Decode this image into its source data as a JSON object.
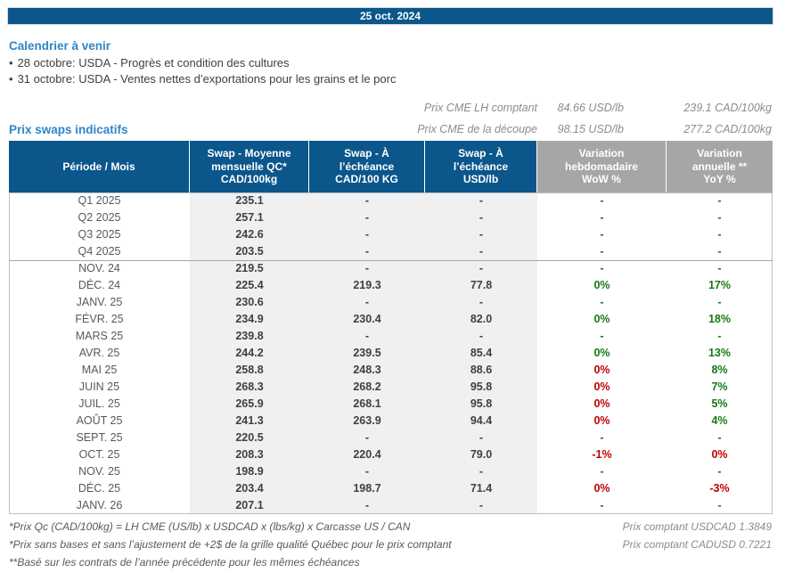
{
  "header_bar": {
    "date": "25 oct. 2024"
  },
  "calendar": {
    "title": "Calendrier à venir",
    "bullet": "•",
    "items": [
      "28 octobre: USDA - Progrès et condition des cultures",
      "31 octobre: USDA - Ventes nettes d’exportations pour les grains et le porc"
    ]
  },
  "cme_prices": [
    {
      "label": "Prix CME LH comptant",
      "usd": "84.66 USD/lb",
      "cad": "239.1 CAD/100kg"
    },
    {
      "label": "Prix CME de la découpe",
      "usd": "98.15 USD/lb",
      "cad": "277.2 CAD/100kg"
    }
  ],
  "swaps": {
    "title": "Prix swaps indicatifs",
    "columns": [
      {
        "label": "Période / Mois"
      },
      {
        "label": "Swap - Moyenne\nmensuelle QC*\nCAD/100kg"
      },
      {
        "label": "Swap - À\nl’échéance\nCAD/100 KG"
      },
      {
        "label": "Swap - À\nl’échéance\nUSD/lb"
      },
      {
        "label": "Variation\nhebdomadaire\nWoW %"
      },
      {
        "label": "Variation\nannuelle **\nYoY %"
      }
    ],
    "rows": [
      {
        "period": "Q1 2025",
        "qc": "235.1",
        "cad": "-",
        "usd": "-",
        "wow": "-",
        "wow_color": "green",
        "yoy": "-",
        "yoy_color": "green"
      },
      {
        "period": "Q2 2025",
        "qc": "257.1",
        "cad": "-",
        "usd": "-",
        "wow": "-",
        "wow_color": "green",
        "yoy": "-",
        "yoy_color": "green"
      },
      {
        "period": "Q3 2025",
        "qc": "242.6",
        "cad": "-",
        "usd": "-",
        "wow": "-",
        "wow_color": "green",
        "yoy": "-",
        "yoy_color": "green"
      },
      {
        "period": "Q4 2025",
        "qc": "203.5",
        "cad": "-",
        "usd": "-",
        "wow": "-",
        "wow_color": "green",
        "yoy": "-",
        "yoy_color": "green"
      },
      {
        "period": "NOV. 24",
        "qc": "219.5",
        "cad": "-",
        "usd": "-",
        "wow": "-",
        "wow_color": "green",
        "yoy": "-",
        "yoy_color": "green"
      },
      {
        "period": "DÉC. 24",
        "qc": "225.4",
        "cad": "219.3",
        "usd": "77.8",
        "wow": "0%",
        "wow_color": "green",
        "yoy": "17%",
        "yoy_color": "green"
      },
      {
        "period": "JANV. 25",
        "qc": "230.6",
        "cad": "-",
        "usd": "-",
        "wow": "-",
        "wow_color": "green",
        "yoy": "-",
        "yoy_color": "green"
      },
      {
        "period": "FÉVR. 25",
        "qc": "234.9",
        "cad": "230.4",
        "usd": "82.0",
        "wow": "0%",
        "wow_color": "green",
        "yoy": "18%",
        "yoy_color": "green"
      },
      {
        "period": "MARS 25",
        "qc": "239.8",
        "cad": "-",
        "usd": "-",
        "wow": "-",
        "wow_color": "green",
        "yoy": "-",
        "yoy_color": "green"
      },
      {
        "period": "AVR. 25",
        "qc": "244.2",
        "cad": "239.5",
        "usd": "85.4",
        "wow": "0%",
        "wow_color": "green",
        "yoy": "13%",
        "yoy_color": "green"
      },
      {
        "period": "MAI 25",
        "qc": "258.8",
        "cad": "248.3",
        "usd": "88.6",
        "wow": "0%",
        "wow_color": "red",
        "yoy": "8%",
        "yoy_color": "green"
      },
      {
        "period": "JUIN 25",
        "qc": "268.3",
        "cad": "268.2",
        "usd": "95.8",
        "wow": "0%",
        "wow_color": "red",
        "yoy": "7%",
        "yoy_color": "green"
      },
      {
        "period": "JUIL. 25",
        "qc": "265.9",
        "cad": "268.1",
        "usd": "95.8",
        "wow": "0%",
        "wow_color": "red",
        "yoy": "5%",
        "yoy_color": "green"
      },
      {
        "period": "AOÛT 25",
        "qc": "241.3",
        "cad": "263.9",
        "usd": "94.4",
        "wow": "0%",
        "wow_color": "red",
        "yoy": "4%",
        "yoy_color": "green"
      },
      {
        "period": "SEPT. 25",
        "qc": "220.5",
        "cad": "-",
        "usd": "-",
        "wow": "-",
        "wow_color": "green",
        "yoy": "-",
        "yoy_color": "green"
      },
      {
        "period": "OCT. 25",
        "qc": "208.3",
        "cad": "220.4",
        "usd": "79.0",
        "wow": "-1%",
        "wow_color": "red",
        "yoy": "0%",
        "yoy_color": "red"
      },
      {
        "period": "NOV. 25",
        "qc": "198.9",
        "cad": "-",
        "usd": "-",
        "wow": "-",
        "wow_color": "green",
        "yoy": "-",
        "yoy_color": "green"
      },
      {
        "period": "DÉC. 25",
        "qc": "203.4",
        "cad": "198.7",
        "usd": "71.4",
        "wow": "0%",
        "wow_color": "red",
        "yoy": "-3%",
        "yoy_color": "red"
      },
      {
        "period": "JANV. 26",
        "qc": "207.1",
        "cad": "-",
        "usd": "-",
        "wow": "-",
        "wow_color": "green",
        "yoy": "-",
        "yoy_color": "green"
      }
    ]
  },
  "footnotes": {
    "lines": [
      "*Prix Qc (CAD/100kg) = LH CME (US/lb) x USDCAD x (lbs/kg) x Carcasse US / CAN",
      "*Prix sans bases et sans l’ajustement de +2$ de la grille qualité Québec pour le prix comptant",
      "**Basé sur les contrats de l’année précédente pour les mêmes échéances"
    ],
    "fx": [
      "Prix comptant USDCAD 1.3849",
      "Prix comptant CADUSD 0.7221"
    ]
  },
  "colors": {
    "bar_blue": "#0B568B",
    "header_gray": "#A6A6A6",
    "title_blue": "#2E86C8",
    "shade_gray": "#F0F0F0",
    "positive_green": "#147A14",
    "negative_red": "#C00000"
  }
}
